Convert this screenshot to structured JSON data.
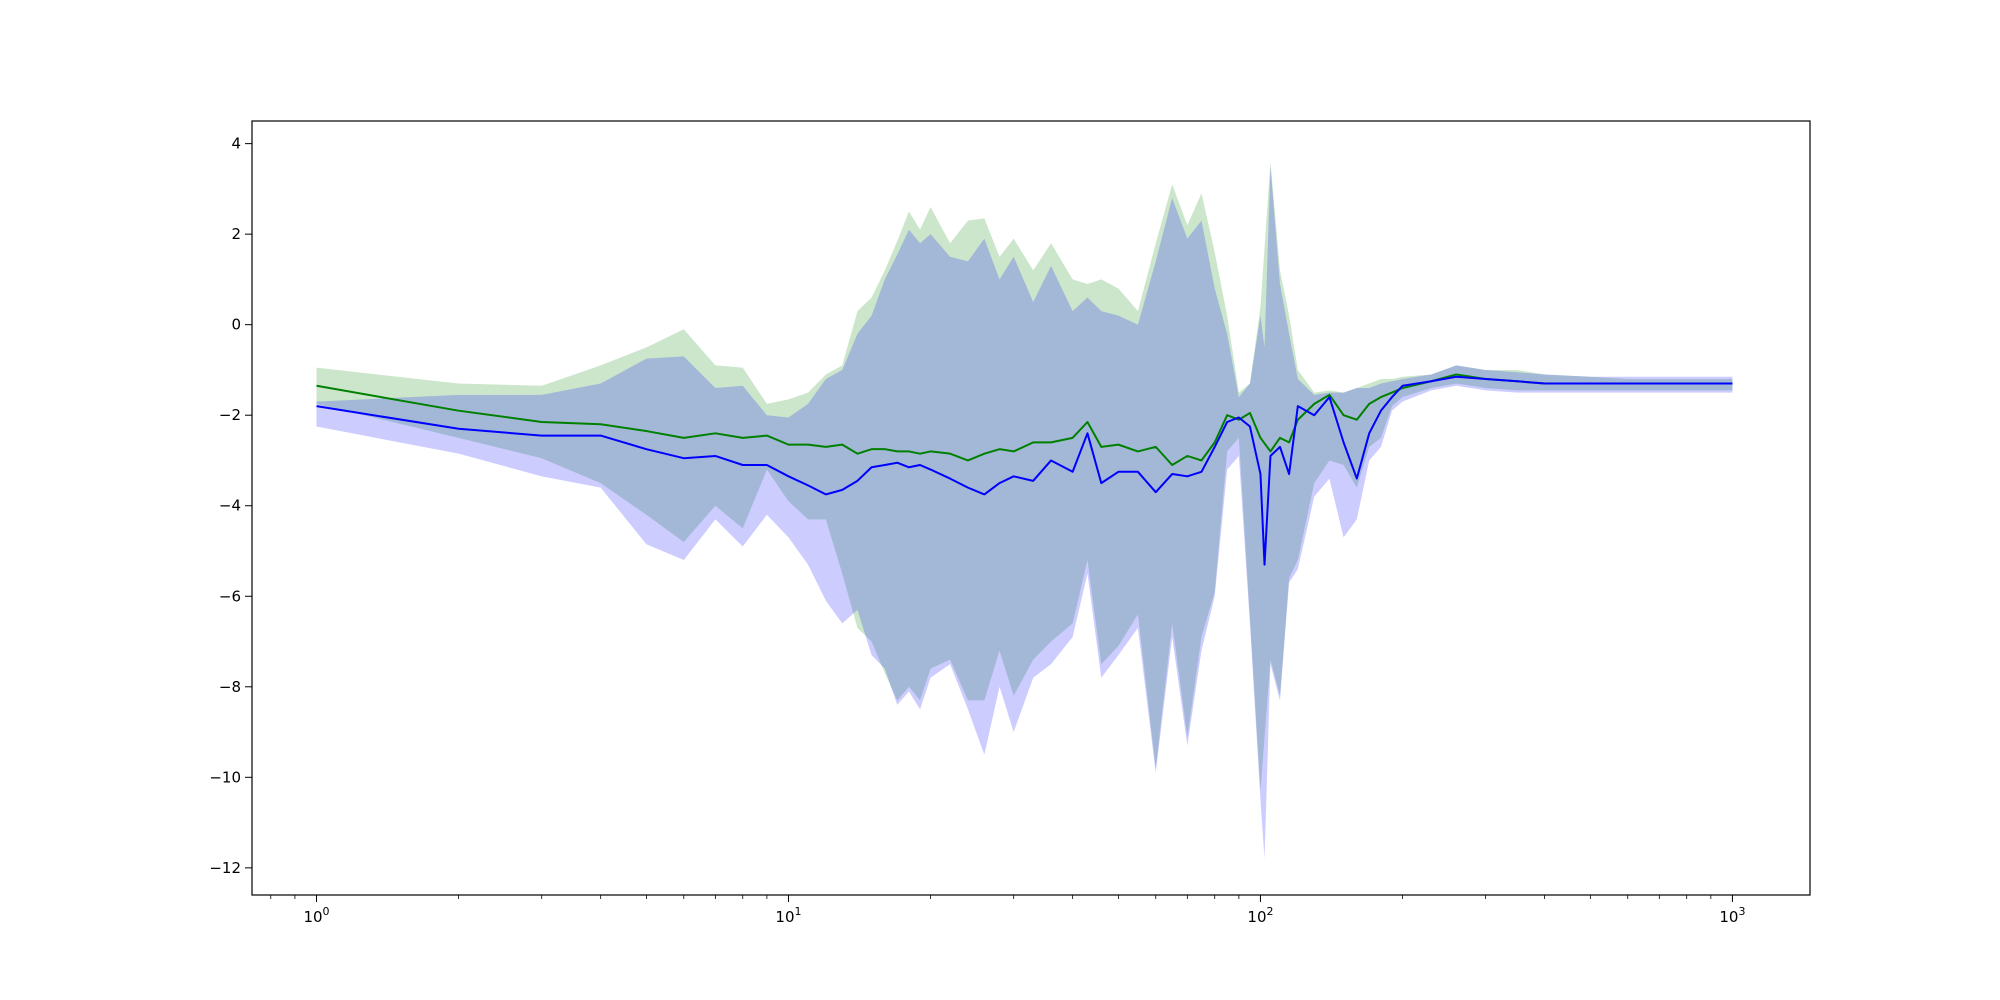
{
  "chart_data": {
    "type": "line",
    "title": "",
    "xlabel": "",
    "ylabel": "",
    "xscale": "log",
    "xlim": [
      0.73,
      1460
    ],
    "ylim": [
      -12.6,
      4.5
    ],
    "grid": false,
    "x_ticks": [
      {
        "value": 1,
        "base": "10",
        "exp": "0"
      },
      {
        "value": 10,
        "base": "10",
        "exp": "1"
      },
      {
        "value": 100,
        "base": "10",
        "exp": "2"
      },
      {
        "value": 1000,
        "base": "10",
        "exp": "3"
      }
    ],
    "y_ticks": [
      {
        "value": 4,
        "label": "4"
      },
      {
        "value": 2,
        "label": "2"
      },
      {
        "value": 0,
        "label": "0"
      },
      {
        "value": -2,
        "label": "−2"
      },
      {
        "value": -4,
        "label": "−4"
      },
      {
        "value": -6,
        "label": "−6"
      },
      {
        "value": -8,
        "label": "−8"
      },
      {
        "value": -10,
        "label": "−10"
      },
      {
        "value": -12,
        "label": "−12"
      }
    ],
    "series": [
      {
        "color": "#008000",
        "band_color": "#008000",
        "band_opacity": 0.2,
        "x": [
          1,
          2,
          3,
          4,
          5,
          6,
          7,
          8,
          9,
          10,
          11,
          12,
          13,
          14,
          15,
          16,
          17,
          18,
          19,
          20,
          22,
          24,
          26,
          28,
          30,
          33,
          36,
          40,
          43,
          46,
          50,
          55,
          60,
          65,
          70,
          75,
          80,
          85,
          90,
          95,
          100,
          105,
          110,
          115,
          120,
          130,
          140,
          150,
          160,
          170,
          180,
          190,
          200,
          230,
          260,
          300,
          350,
          400,
          500,
          600,
          700,
          800,
          900,
          1000
        ],
        "y": [
          -1.35,
          -1.9,
          -2.15,
          -2.2,
          -2.35,
          -2.5,
          -2.4,
          -2.5,
          -2.45,
          -2.65,
          -2.65,
          -2.7,
          -2.65,
          -2.85,
          -2.75,
          -2.75,
          -2.8,
          -2.8,
          -2.85,
          -2.8,
          -2.85,
          -3.0,
          -2.85,
          -2.75,
          -2.8,
          -2.6,
          -2.6,
          -2.5,
          -2.15,
          -2.7,
          -2.65,
          -2.8,
          -2.7,
          -3.1,
          -2.9,
          -3.0,
          -2.6,
          -2.0,
          -2.1,
          -1.95,
          -2.5,
          -2.8,
          -2.5,
          -2.6,
          -2.1,
          -1.75,
          -1.55,
          -2.0,
          -2.1,
          -1.75,
          -1.6,
          -1.5,
          -1.4,
          -1.25,
          -1.1,
          -1.2,
          -1.25,
          -1.3,
          -1.3,
          -1.3,
          -1.3,
          -1.3,
          -1.3,
          -1.3
        ],
        "upper": [
          -0.95,
          -1.3,
          -1.35,
          -0.9,
          -0.5,
          -0.1,
          -0.9,
          -0.95,
          -1.75,
          -1.65,
          -1.5,
          -1.1,
          -0.9,
          0.3,
          0.6,
          1.2,
          1.85,
          2.5,
          2.1,
          2.6,
          1.8,
          2.3,
          2.35,
          1.5,
          1.9,
          1.2,
          1.8,
          1.0,
          0.9,
          1.0,
          0.8,
          0.3,
          1.8,
          3.1,
          2.2,
          2.9,
          1.6,
          0.2,
          -1.5,
          -1.3,
          0.4,
          3.6,
          1.2,
          0.2,
          -1.0,
          -1.5,
          -1.45,
          -1.5,
          -1.4,
          -1.3,
          -1.2,
          -1.2,
          -1.15,
          -1.1,
          -0.9,
          -1.0,
          -1.0,
          -1.1,
          -1.15,
          -1.2,
          -1.2,
          -1.2,
          -1.2,
          -1.2
        ],
        "lower": [
          -1.75,
          -2.5,
          -2.95,
          -3.5,
          -4.2,
          -4.8,
          -4.0,
          -4.5,
          -3.2,
          -3.9,
          -4.3,
          -4.3,
          -5.5,
          -6.7,
          -7.0,
          -7.7,
          -8.3,
          -8.0,
          -8.3,
          -7.6,
          -7.4,
          -8.3,
          -8.3,
          -7.2,
          -8.2,
          -7.4,
          -7.0,
          -6.6,
          -5.2,
          -7.5,
          -7.1,
          -6.4,
          -9.8,
          -6.6,
          -9.1,
          -6.9,
          -5.9,
          -2.8,
          -2.5,
          -6.5,
          -10.3,
          -7.4,
          -8.2,
          -5.6,
          -5.2,
          -3.5,
          -3.0,
          -3.1,
          -3.6,
          -2.7,
          -2.5,
          -1.8,
          -1.6,
          -1.4,
          -1.3,
          -1.4,
          -1.45,
          -1.45,
          -1.45,
          -1.45,
          -1.45,
          -1.45,
          -1.45,
          -1.45
        ]
      },
      {
        "color": "#0000ff",
        "band_color": "#0000ff",
        "band_opacity": 0.2,
        "x": [
          1,
          2,
          3,
          4,
          5,
          6,
          7,
          8,
          9,
          10,
          11,
          12,
          13,
          14,
          15,
          16,
          17,
          18,
          19,
          20,
          22,
          24,
          26,
          28,
          30,
          33,
          36,
          40,
          43,
          46,
          50,
          55,
          60,
          65,
          70,
          75,
          80,
          85,
          90,
          95,
          100,
          102,
          105,
          110,
          115,
          120,
          130,
          140,
          150,
          160,
          170,
          180,
          190,
          200,
          230,
          260,
          300,
          350,
          400,
          500,
          600,
          700,
          800,
          900,
          1000
        ],
        "y": [
          -1.8,
          -2.3,
          -2.45,
          -2.45,
          -2.75,
          -2.95,
          -2.9,
          -3.1,
          -3.1,
          -3.35,
          -3.55,
          -3.75,
          -3.65,
          -3.45,
          -3.15,
          -3.1,
          -3.05,
          -3.15,
          -3.1,
          -3.2,
          -3.4,
          -3.6,
          -3.75,
          -3.5,
          -3.35,
          -3.45,
          -3.0,
          -3.25,
          -2.4,
          -3.5,
          -3.25,
          -3.25,
          -3.7,
          -3.3,
          -3.35,
          -3.25,
          -2.7,
          -2.15,
          -2.05,
          -2.25,
          -3.3,
          -5.3,
          -2.9,
          -2.7,
          -3.3,
          -1.8,
          -2.0,
          -1.6,
          -2.6,
          -3.4,
          -2.4,
          -1.9,
          -1.6,
          -1.35,
          -1.25,
          -1.15,
          -1.2,
          -1.25,
          -1.3,
          -1.3,
          -1.3,
          -1.3,
          -1.3,
          -1.3,
          -1.3
        ],
        "upper": [
          -1.7,
          -1.55,
          -1.55,
          -1.3,
          -0.75,
          -0.7,
          -1.4,
          -1.35,
          -2.0,
          -2.05,
          -1.75,
          -1.2,
          -1.0,
          -0.2,
          0.2,
          1.0,
          1.55,
          2.1,
          1.8,
          2.0,
          1.5,
          1.4,
          1.9,
          1.0,
          1.5,
          0.5,
          1.3,
          0.3,
          0.6,
          0.3,
          0.2,
          0.0,
          1.4,
          2.8,
          1.9,
          2.3,
          0.8,
          -0.2,
          -1.6,
          -1.3,
          0.2,
          -0.5,
          3.5,
          0.9,
          -0.2,
          -1.2,
          -1.55,
          -1.5,
          -1.5,
          -1.4,
          -1.4,
          -1.3,
          -1.25,
          -1.2,
          -1.1,
          -0.9,
          -1.0,
          -1.05,
          -1.1,
          -1.15,
          -1.15,
          -1.15,
          -1.15,
          -1.15,
          -1.15
        ],
        "lower": [
          -2.25,
          -2.85,
          -3.35,
          -3.6,
          -4.85,
          -5.2,
          -4.3,
          -4.9,
          -4.2,
          -4.7,
          -5.3,
          -6.1,
          -6.6,
          -6.3,
          -7.3,
          -7.6,
          -8.4,
          -8.1,
          -8.5,
          -7.8,
          -7.5,
          -8.5,
          -9.5,
          -8.0,
          -9.0,
          -7.8,
          -7.5,
          -6.9,
          -5.5,
          -7.8,
          -7.3,
          -6.7,
          -9.9,
          -6.9,
          -9.3,
          -7.2,
          -6.0,
          -3.2,
          -2.9,
          -6.6,
          -10.5,
          -11.8,
          -7.5,
          -8.3,
          -5.7,
          -5.4,
          -3.8,
          -3.4,
          -4.7,
          -4.3,
          -3.0,
          -2.7,
          -1.9,
          -1.7,
          -1.45,
          -1.35,
          -1.45,
          -1.5,
          -1.5,
          -1.5,
          -1.5,
          -1.5,
          -1.5,
          -1.5,
          -1.5
        ]
      }
    ]
  }
}
